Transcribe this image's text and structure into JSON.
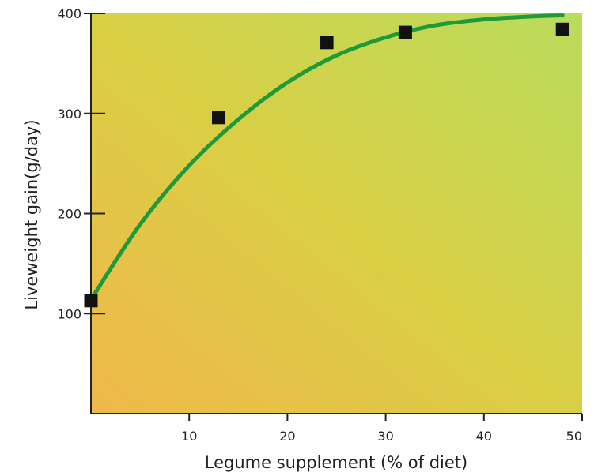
{
  "chart_data": {
    "type": "scatter",
    "title": "",
    "xlabel": "Legume supplement (% of diet)",
    "ylabel": "Liveweight gain(g/day)",
    "xlim": [
      0,
      50
    ],
    "ylim": [
      0,
      400
    ],
    "xticks": [
      10,
      20,
      30,
      40,
      50
    ],
    "yticks": [
      100,
      200,
      300,
      400
    ],
    "grid": false,
    "legend": "none",
    "series": [
      {
        "kind": "points",
        "x": [
          0,
          13,
          24,
          32,
          48
        ],
        "y": [
          113,
          296,
          371,
          381,
          384
        ]
      },
      {
        "kind": "fitted-curve",
        "x": [
          0,
          5,
          10,
          15,
          20,
          25,
          30,
          35,
          40,
          45,
          48
        ],
        "y": [
          114,
          189,
          248,
          294,
          331,
          358,
          376,
          388,
          394,
          397,
          398
        ]
      }
    ],
    "colors": {
      "background_left": "#f0b84a",
      "background_mid": "#d9cf45",
      "background_right": "#b9dc5c",
      "curve": "#1f9a3a",
      "marker": "#111111",
      "axis": "#222222"
    }
  }
}
